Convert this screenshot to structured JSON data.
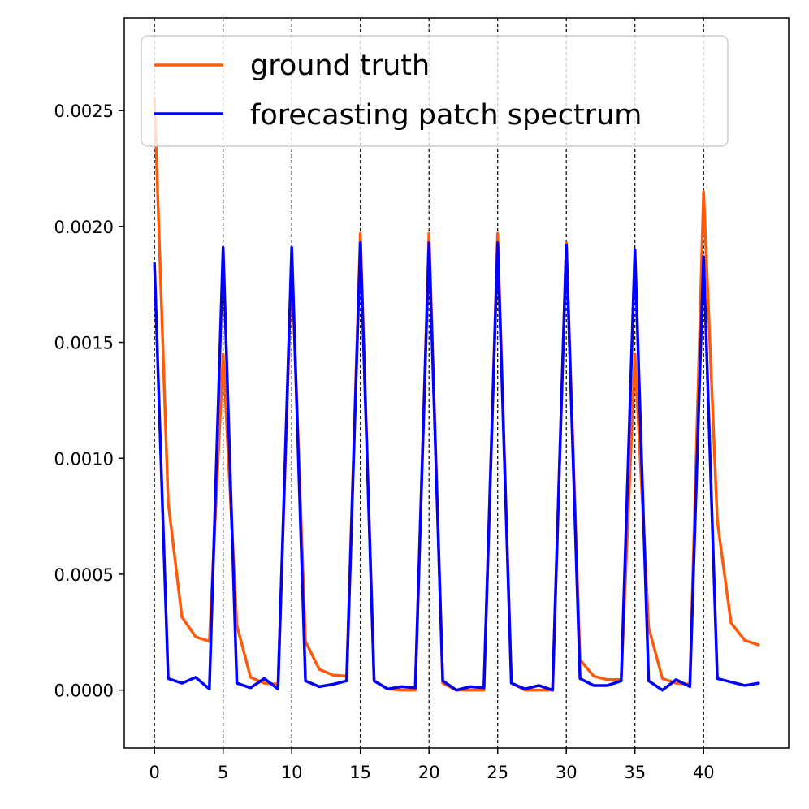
{
  "chart_data": {
    "type": "line",
    "title": "",
    "xlabel": "",
    "ylabel": "",
    "xlim": [
      -2.2,
      46.2
    ],
    "ylim": [
      -0.00025,
      0.0029
    ],
    "xticks": [
      0,
      5,
      10,
      15,
      20,
      25,
      30,
      35,
      40
    ],
    "xtick_labels": [
      "0",
      "5",
      "10",
      "15",
      "20",
      "25",
      "30",
      "35",
      "40"
    ],
    "yticks": [
      0,
      0.0005,
      0.001,
      0.0015,
      0.002,
      0.0025
    ],
    "ytick_labels": [
      "0.0000",
      "0.0005",
      "0.0010",
      "0.0015",
      "0.0020",
      "0.0025"
    ],
    "vlines": [
      0,
      5,
      10,
      15,
      20,
      25,
      30,
      35,
      40
    ],
    "legend_position": "top-left",
    "x": [
      0,
      1,
      2,
      3,
      4,
      5,
      6,
      7,
      8,
      9,
      10,
      11,
      12,
      13,
      14,
      15,
      16,
      17,
      18,
      19,
      20,
      21,
      22,
      23,
      24,
      25,
      26,
      27,
      28,
      29,
      30,
      31,
      32,
      33,
      34,
      35,
      36,
      37,
      38,
      39,
      40,
      41,
      42,
      43,
      44
    ],
    "series": [
      {
        "name": "ground truth",
        "color": "#ff5a0a",
        "values": [
          0.00255,
          0.00081,
          0.000315,
          0.00023,
          0.00021,
          0.00145,
          0.00028,
          5.5e-05,
          3e-05,
          2.5e-05,
          0.00185,
          0.00021,
          9e-05,
          6.5e-05,
          6e-05,
          0.00197,
          4e-05,
          5e-06,
          0.0,
          0.0,
          0.00197,
          3e-05,
          0.0,
          0.0,
          0.0,
          0.00197,
          3e-05,
          0.0,
          0.0,
          0.0,
          0.00193,
          0.00013,
          6e-05,
          4.5e-05,
          4.5e-05,
          0.00145,
          0.00027,
          5e-05,
          3e-05,
          2.5e-05,
          0.00215,
          0.00073,
          0.00029,
          0.000215,
          0.000195
        ]
      },
      {
        "name": "forecasting patch spectrum",
        "color": "#0000ff",
        "values": [
          0.00184,
          5e-05,
          3e-05,
          5.5e-05,
          5e-06,
          0.00191,
          3e-05,
          1e-05,
          5e-05,
          5e-06,
          0.00191,
          4e-05,
          1.5e-05,
          2.5e-05,
          4e-05,
          0.00193,
          4e-05,
          5e-06,
          1.5e-05,
          1e-05,
          0.00193,
          4e-05,
          0.0,
          1.5e-05,
          1e-05,
          0.00193,
          3e-05,
          5e-06,
          2e-05,
          0.0,
          0.00192,
          5e-05,
          2e-05,
          2e-05,
          4e-05,
          0.0019,
          4e-05,
          0.0,
          4.5e-05,
          1.5e-05,
          0.00187,
          5e-05,
          3.5e-05,
          2e-05,
          3e-05
        ]
      }
    ]
  }
}
